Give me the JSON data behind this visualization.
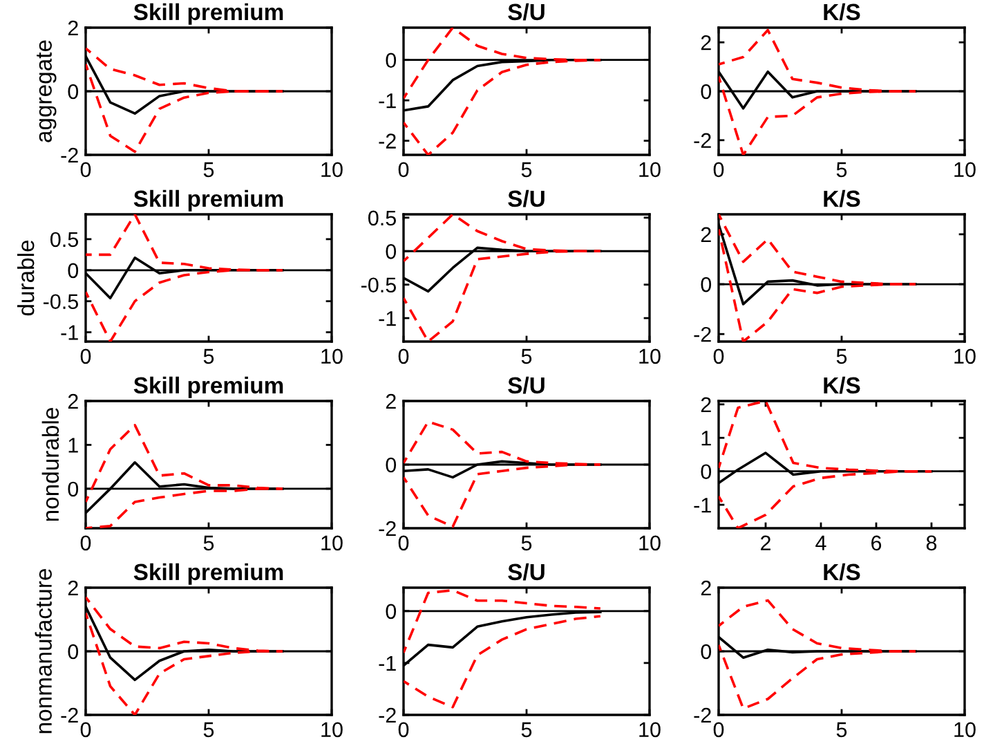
{
  "chart_data": [
    {
      "type": "line",
      "title": "Skill premium",
      "ylabel": "aggregate",
      "x": [
        0,
        1,
        2,
        3,
        4,
        5,
        6,
        7,
        8
      ],
      "xlim": [
        0,
        10
      ],
      "xticks": [
        0,
        5,
        10
      ],
      "ylim": [
        -2,
        2
      ],
      "yticks": [
        -2,
        0,
        2
      ],
      "ref_lines": [
        {
          "axis": "y",
          "value": 0,
          "color": "#000000"
        }
      ],
      "series": [
        {
          "color": "#ff0000",
          "line_style": "dashed",
          "values": [
            1.35,
            0.7,
            0.5,
            0.2,
            0.25,
            0.1,
            0,
            0,
            0
          ]
        },
        {
          "color": "#ff0000",
          "line_style": "dashed",
          "values": [
            0.85,
            -1.4,
            -1.9,
            -0.55,
            -0.2,
            -0.05,
            0,
            0,
            0
          ]
        },
        {
          "color": "#000000",
          "line_style": "solid",
          "values": [
            1.1,
            -0.35,
            -0.7,
            -0.15,
            0,
            0,
            0,
            0,
            0
          ]
        }
      ]
    },
    {
      "type": "line",
      "title": "S/U",
      "x": [
        0,
        1,
        2,
        3,
        4,
        5,
        6,
        7,
        8
      ],
      "xlim": [
        0,
        10
      ],
      "xticks": [
        0,
        5,
        10
      ],
      "ylim": [
        -2.35,
        0.8
      ],
      "yticks": [
        -2,
        -1,
        0
      ],
      "ref_lines": [
        {
          "axis": "y",
          "value": 0,
          "color": "#000000"
        }
      ],
      "series": [
        {
          "color": "#ff0000",
          "line_style": "dashed",
          "values": [
            -0.95,
            0,
            0.8,
            0.35,
            0.15,
            0.05,
            0.02,
            0,
            0
          ]
        },
        {
          "color": "#ff0000",
          "line_style": "dashed",
          "values": [
            -1.55,
            -2.35,
            -1.8,
            -0.75,
            -0.3,
            -0.12,
            -0.05,
            -0.02,
            0
          ]
        },
        {
          "color": "#000000",
          "line_style": "solid",
          "values": [
            -1.25,
            -1.15,
            -0.5,
            -0.15,
            -0.05,
            -0.03,
            0,
            0,
            0
          ]
        }
      ]
    },
    {
      "type": "line",
      "title": "K/S",
      "x": [
        0,
        1,
        2,
        3,
        4,
        5,
        6,
        7,
        8
      ],
      "xlim": [
        0,
        10
      ],
      "xticks": [
        0,
        5,
        10
      ],
      "ylim": [
        -2.6,
        2.6
      ],
      "yticks": [
        -2,
        0,
        2
      ],
      "ref_lines": [
        {
          "axis": "y",
          "value": 0,
          "color": "#000000"
        }
      ],
      "series": [
        {
          "color": "#ff0000",
          "line_style": "dashed",
          "values": [
            1.1,
            1.4,
            2.5,
            0.5,
            0.35,
            0.15,
            0.05,
            0,
            0
          ]
        },
        {
          "color": "#ff0000",
          "line_style": "dashed",
          "values": [
            0.6,
            -2.6,
            -1.05,
            -1.0,
            -0.25,
            -0.1,
            -0.03,
            0,
            0
          ]
        },
        {
          "color": "#000000",
          "line_style": "solid",
          "values": [
            0.8,
            -0.7,
            0.8,
            -0.25,
            0,
            0,
            0,
            0,
            0
          ]
        }
      ]
    },
    {
      "type": "line",
      "title": "Skill premium",
      "ylabel": "durable",
      "x": [
        0,
        1,
        2,
        3,
        4,
        5,
        6,
        7,
        8
      ],
      "xlim": [
        0,
        10
      ],
      "xticks": [
        0,
        5,
        10
      ],
      "ylim": [
        -1.15,
        0.9
      ],
      "yticks": [
        -1,
        -0.5,
        0,
        0.5
      ],
      "ref_lines": [
        {
          "axis": "y",
          "value": 0,
          "color": "#000000"
        }
      ],
      "series": [
        {
          "color": "#ff0000",
          "line_style": "dashed",
          "values": [
            0.25,
            0.25,
            0.9,
            0.12,
            0.1,
            0.03,
            0.01,
            0,
            0
          ]
        },
        {
          "color": "#ff0000",
          "line_style": "dashed",
          "values": [
            -0.35,
            -1.15,
            -0.5,
            -0.2,
            -0.08,
            -0.03,
            0,
            0,
            0
          ]
        },
        {
          "color": "#000000",
          "line_style": "solid",
          "values": [
            -0.05,
            -0.45,
            0.2,
            -0.05,
            0,
            0,
            0,
            0,
            0
          ]
        }
      ]
    },
    {
      "type": "line",
      "title": "S/U",
      "x": [
        0,
        1,
        2,
        3,
        4,
        5,
        6,
        7,
        8
      ],
      "xlim": [
        0,
        10
      ],
      "xticks": [
        0,
        5,
        10
      ],
      "ylim": [
        -1.35,
        0.55
      ],
      "yticks": [
        -1,
        -0.5,
        0,
        0.5
      ],
      "ref_lines": [
        {
          "axis": "y",
          "value": 0,
          "color": "#000000"
        }
      ],
      "series": [
        {
          "color": "#ff0000",
          "line_style": "dashed",
          "values": [
            -0.15,
            0.2,
            0.55,
            0.3,
            0.15,
            0.03,
            0.01,
            0,
            0
          ]
        },
        {
          "color": "#ff0000",
          "line_style": "dashed",
          "values": [
            -0.7,
            -1.35,
            -1.05,
            -0.12,
            -0.08,
            -0.04,
            -0.01,
            0,
            0
          ]
        },
        {
          "color": "#000000",
          "line_style": "solid",
          "values": [
            -0.4,
            -0.6,
            -0.25,
            0.05,
            0.02,
            0,
            0,
            0,
            0
          ]
        }
      ]
    },
    {
      "type": "line",
      "title": "K/S",
      "x": [
        0,
        1,
        2,
        3,
        4,
        5,
        6,
        7,
        8
      ],
      "xlim": [
        0,
        10
      ],
      "xticks": [
        0,
        5,
        10
      ],
      "ylim": [
        -2.3,
        2.8
      ],
      "yticks": [
        -2,
        0,
        2
      ],
      "ref_lines": [
        {
          "axis": "y",
          "value": 0,
          "color": "#000000"
        }
      ],
      "series": [
        {
          "color": "#ff0000",
          "line_style": "dashed",
          "values": [
            2.8,
            0.9,
            1.8,
            0.5,
            0.3,
            0.1,
            0.05,
            0,
            0
          ]
        },
        {
          "color": "#ff0000",
          "line_style": "dashed",
          "values": [
            2.2,
            -2.3,
            -1.5,
            -0.2,
            -0.35,
            -0.1,
            -0.05,
            0,
            0
          ]
        },
        {
          "color": "#000000",
          "line_style": "solid",
          "values": [
            2.4,
            -0.8,
            0.1,
            0.15,
            -0.05,
            0,
            0,
            0,
            0
          ]
        }
      ]
    },
    {
      "type": "line",
      "title": "Skill premium",
      "ylabel": "nondurable",
      "x": [
        0,
        1,
        2,
        3,
        4,
        5,
        6,
        7,
        8
      ],
      "xlim": [
        0,
        10
      ],
      "xticks": [
        0,
        5,
        10
      ],
      "ylim": [
        -0.9,
        2
      ],
      "yticks": [
        0,
        1,
        2
      ],
      "ref_lines": [
        {
          "axis": "y",
          "value": 0,
          "color": "#000000"
        }
      ],
      "series": [
        {
          "color": "#ff0000",
          "line_style": "dashed",
          "values": [
            -0.3,
            0.9,
            1.45,
            0.3,
            0.35,
            0.08,
            0.08,
            0.02,
            0
          ]
        },
        {
          "color": "#ff0000",
          "line_style": "dashed",
          "values": [
            -0.9,
            -0.85,
            -0.3,
            -0.2,
            -0.12,
            -0.05,
            -0.05,
            0,
            0
          ]
        },
        {
          "color": "#000000",
          "line_style": "solid",
          "values": [
            -0.55,
            0,
            0.6,
            0.05,
            0.1,
            0.02,
            0,
            0,
            0
          ]
        }
      ]
    },
    {
      "type": "line",
      "title": "S/U",
      "x": [
        0,
        1,
        2,
        3,
        4,
        5,
        6,
        7,
        8
      ],
      "xlim": [
        0,
        10
      ],
      "xticks": [
        0,
        5,
        10
      ],
      "ylim": [
        -2,
        2
      ],
      "yticks": [
        -2,
        0,
        2
      ],
      "ref_lines": [
        {
          "axis": "y",
          "value": 0,
          "color": "#000000"
        }
      ],
      "series": [
        {
          "color": "#ff0000",
          "line_style": "dashed",
          "values": [
            0.05,
            1.35,
            1.1,
            0.35,
            0.4,
            0.1,
            0.05,
            0.02,
            0
          ]
        },
        {
          "color": "#ff0000",
          "line_style": "dashed",
          "values": [
            -0.4,
            -1.6,
            -1.95,
            -0.3,
            -0.2,
            -0.1,
            -0.05,
            0,
            0
          ]
        },
        {
          "color": "#000000",
          "line_style": "solid",
          "values": [
            -0.2,
            -0.15,
            -0.4,
            0,
            0.1,
            0.05,
            0,
            0,
            0
          ]
        }
      ]
    },
    {
      "type": "line",
      "title": "K/S",
      "x": [
        0.3,
        1,
        2,
        3,
        4,
        5,
        6,
        7,
        8
      ],
      "xlim": [
        0.3,
        9.2
      ],
      "xticks": [
        2,
        4,
        6,
        8
      ],
      "ylim": [
        -1.7,
        2.1
      ],
      "yticks": [
        -1,
        0,
        1,
        2
      ],
      "ref_lines": [
        {
          "axis": "y",
          "value": 0,
          "color": "#000000"
        }
      ],
      "series": [
        {
          "color": "#ff0000",
          "line_style": "dashed",
          "values": [
            0.1,
            1.9,
            2.1,
            0.25,
            0.1,
            0.05,
            0.02,
            0,
            0
          ]
        },
        {
          "color": "#ff0000",
          "line_style": "dashed",
          "values": [
            -0.75,
            -1.7,
            -1.3,
            -0.45,
            -0.2,
            -0.1,
            -0.05,
            0,
            0
          ]
        },
        {
          "color": "#000000",
          "line_style": "solid",
          "values": [
            -0.35,
            0.05,
            0.55,
            -0.1,
            0,
            0,
            0,
            0,
            0
          ]
        }
      ]
    },
    {
      "type": "line",
      "title": "Skill premium",
      "ylabel": "nonmanufacture",
      "x": [
        0,
        1,
        2,
        3,
        4,
        5,
        6,
        7,
        8
      ],
      "xlim": [
        0,
        10
      ],
      "xticks": [
        0,
        5,
        10
      ],
      "ylim": [
        -2,
        2
      ],
      "yticks": [
        -2,
        0,
        2
      ],
      "ref_lines": [
        {
          "axis": "y",
          "value": 0,
          "color": "#000000"
        }
      ],
      "series": [
        {
          "color": "#ff0000",
          "line_style": "dashed",
          "values": [
            1.7,
            0.7,
            0.15,
            0.1,
            0.3,
            0.25,
            0.1,
            0.02,
            0
          ]
        },
        {
          "color": "#ff0000",
          "line_style": "dashed",
          "values": [
            1.2,
            -1.1,
            -2.0,
            -0.7,
            -0.25,
            -0.15,
            -0.05,
            0,
            0
          ]
        },
        {
          "color": "#000000",
          "line_style": "solid",
          "values": [
            1.4,
            -0.2,
            -0.9,
            -0.3,
            0,
            0.05,
            0,
            0,
            0
          ]
        }
      ]
    },
    {
      "type": "line",
      "title": "S/U",
      "x": [
        0,
        1,
        2,
        3,
        4,
        5,
        6,
        7,
        8
      ],
      "xlim": [
        0,
        10
      ],
      "xticks": [
        0,
        5,
        10
      ],
      "ylim": [
        -2,
        0.45
      ],
      "yticks": [
        -2,
        -1,
        0
      ],
      "ref_lines": [
        {
          "axis": "y",
          "value": 0,
          "color": "#000000"
        }
      ],
      "series": [
        {
          "color": "#ff0000",
          "line_style": "dashed",
          "values": [
            -0.8,
            0.35,
            0.4,
            0.2,
            0.2,
            0.15,
            0.1,
            0.08,
            0.05
          ]
        },
        {
          "color": "#ff0000",
          "line_style": "dashed",
          "values": [
            -1.35,
            -1.65,
            -1.85,
            -0.85,
            -0.55,
            -0.35,
            -0.25,
            -0.15,
            -0.1
          ]
        },
        {
          "color": "#000000",
          "line_style": "solid",
          "values": [
            -1.05,
            -0.65,
            -0.7,
            -0.3,
            -0.2,
            -0.12,
            -0.07,
            -0.03,
            -0.02
          ]
        }
      ]
    },
    {
      "type": "line",
      "title": "K/S",
      "x": [
        0,
        1,
        2,
        3,
        4,
        5,
        6,
        7,
        8
      ],
      "xlim": [
        0,
        10
      ],
      "xticks": [
        0,
        5,
        10
      ],
      "ylim": [
        -2,
        2
      ],
      "yticks": [
        -2,
        0,
        2
      ],
      "ref_lines": [
        {
          "axis": "y",
          "value": 0,
          "color": "#000000"
        }
      ],
      "series": [
        {
          "color": "#ff0000",
          "line_style": "dashed",
          "values": [
            0.8,
            1.4,
            1.6,
            0.7,
            0.25,
            0.1,
            0.05,
            0,
            0
          ]
        },
        {
          "color": "#ff0000",
          "line_style": "dashed",
          "values": [
            0.2,
            -1.8,
            -1.5,
            -0.85,
            -0.25,
            -0.1,
            -0.05,
            0,
            0
          ]
        },
        {
          "color": "#000000",
          "line_style": "solid",
          "values": [
            0.45,
            -0.2,
            0.05,
            -0.03,
            0,
            0,
            0,
            0,
            0
          ]
        }
      ]
    }
  ]
}
